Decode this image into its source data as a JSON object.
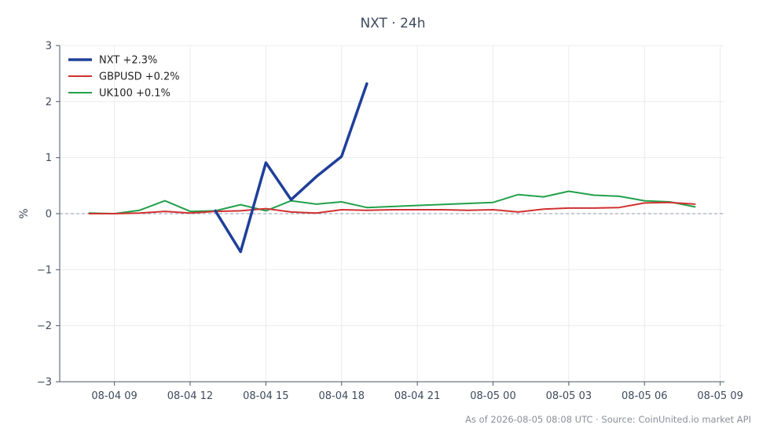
{
  "chart_data": {
    "type": "line",
    "title": "NXT · 24h",
    "ylabel": "%",
    "xlabel": "",
    "xlim": [
      "2026-08-04 06:50",
      "2026-08-05 09:10"
    ],
    "ylim": [
      -3,
      3
    ],
    "x_ticks": [
      "08-04 09",
      "08-04 12",
      "08-04 15",
      "08-04 18",
      "08-04 21",
      "08-05 00",
      "08-05 03",
      "08-05 06",
      "08-05 09"
    ],
    "x_tick_times": [
      "2026-08-04 09:00",
      "2026-08-04 12:00",
      "2026-08-04 15:00",
      "2026-08-04 18:00",
      "2026-08-04 21:00",
      "2026-08-05 00:00",
      "2026-08-05 03:00",
      "2026-08-05 06:00",
      "2026-08-05 09:00"
    ],
    "y_ticks": [
      -3,
      -2,
      -1,
      0,
      1,
      2,
      3
    ],
    "y_tick_labels": [
      "−3",
      "−2",
      "−1",
      "0",
      "1",
      "2",
      "3"
    ],
    "grid": true,
    "zero_line": true,
    "legend_position": "top-left",
    "series": [
      {
        "name": "NXT +2.3%",
        "color": "#1f3f9a",
        "x": [
          "2026-08-04 13:00",
          "2026-08-04 14:00",
          "2026-08-04 15:00",
          "2026-08-04 16:00",
          "2026-08-04 17:00",
          "2026-08-04 18:00",
          "2026-08-04 19:00"
        ],
        "values": [
          0.05,
          -0.68,
          0.91,
          0.25,
          0.66,
          1.02,
          2.32
        ]
      },
      {
        "name": "GBPUSD +0.2%",
        "color": "#d03131",
        "x": [
          "2026-08-04 08:00",
          "2026-08-04 09:00",
          "2026-08-04 10:00",
          "2026-08-04 11:00",
          "2026-08-04 12:00",
          "2026-08-04 13:00",
          "2026-08-04 14:00",
          "2026-08-04 15:00",
          "2026-08-04 16:00",
          "2026-08-04 17:00",
          "2026-08-04 18:00",
          "2026-08-04 19:00",
          "2026-08-04 20:00",
          "2026-08-04 21:00",
          "2026-08-04 22:00",
          "2026-08-04 23:00",
          "2026-08-05 00:00",
          "2026-08-05 01:00",
          "2026-08-05 02:00",
          "2026-08-05 03:00",
          "2026-08-05 04:00",
          "2026-08-05 05:00",
          "2026-08-05 06:00",
          "2026-08-05 07:00",
          "2026-08-05 08:00"
        ],
        "values": [
          0.0,
          0.0,
          0.01,
          0.04,
          0.01,
          0.04,
          0.05,
          0.09,
          0.03,
          0.01,
          0.07,
          0.06,
          0.07,
          0.07,
          0.07,
          0.06,
          0.07,
          0.03,
          0.08,
          0.1,
          0.1,
          0.11,
          0.19,
          0.2,
          0.17
        ]
      },
      {
        "name": "UK100 +0.1%",
        "color": "#22a04a",
        "x": [
          "2026-08-04 08:00",
          "2026-08-04 09:00",
          "2026-08-04 10:00",
          "2026-08-04 11:00",
          "2026-08-04 12:00",
          "2026-08-04 13:00",
          "2026-08-04 14:00",
          "2026-08-04 15:00",
          "2026-08-04 16:00",
          "2026-08-04 17:00",
          "2026-08-04 18:00",
          "2026-08-04 19:00",
          "2026-08-05 00:00",
          "2026-08-05 01:00",
          "2026-08-05 02:00",
          "2026-08-05 03:00",
          "2026-08-05 04:00",
          "2026-08-05 05:00",
          "2026-08-05 06:00",
          "2026-08-05 07:00",
          "2026-08-05 08:00"
        ],
        "values": [
          0.01,
          0.0,
          0.06,
          0.23,
          0.04,
          0.05,
          0.16,
          0.05,
          0.23,
          0.17,
          0.21,
          0.11,
          0.2,
          0.34,
          0.3,
          0.4,
          0.33,
          0.31,
          0.23,
          0.21,
          0.12
        ]
      }
    ]
  },
  "footer": "As of 2026-08-05 08:08 UTC · Source: CoinUnited.io market API"
}
